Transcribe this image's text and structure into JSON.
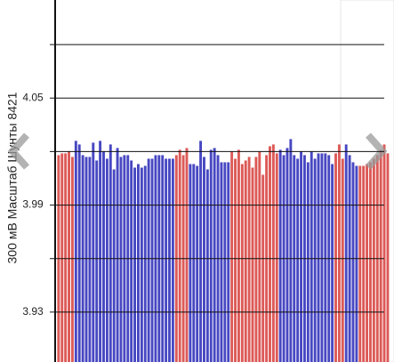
{
  "chart_data": {
    "type": "bar",
    "y_label": "300 мВ Масштаб  Шунты 8421",
    "values": [
      4.018,
      4.019,
      4.019,
      4.02,
      4.017,
      4.026,
      4.024,
      4.018,
      4.017,
      4.017,
      4.025,
      4.015,
      4.026,
      4.02,
      4.016,
      4.024,
      4.01,
      4.022,
      4.017,
      4.018,
      4.018,
      4.015,
      4.011,
      4.013,
      4.011,
      4.012,
      4.016,
      4.016,
      4.018,
      4.018,
      4.018,
      4.016,
      4.016,
      4.016,
      4.018,
      4.021,
      4.018,
      4.022,
      4.013,
      4.013,
      4.012,
      4.026,
      4.017,
      4.01,
      4.021,
      4.022,
      4.018,
      4.014,
      4.014,
      4.014,
      4.02,
      4.016,
      4.021,
      4.013,
      4.015,
      4.017,
      4.011,
      4.017,
      4.02,
      4.007,
      4.018,
      4.023,
      4.024,
      4.019,
      4.021,
      4.018,
      4.022,
      4.027,
      4.018,
      4.016,
      4.02,
      4.018,
      4.014,
      4.02,
      4.016,
      4.019,
      4.019,
      4.019,
      4.018,
      4.013,
      4.019,
      4.024,
      4.016,
      4.024,
      4.018,
      4.014,
      4.012,
      4.012,
      4.012,
      4.013,
      4.014,
      4.016,
      4.018,
      4.021,
      4.024,
      4.019
    ],
    "colors": [
      "#dc5a57",
      "#dc5a57",
      "#dc5a57",
      "#dc5a57",
      "#dc5a57",
      "#4747c2",
      "#4747c2",
      "#4747c2",
      "#4747c2",
      "#4747c2",
      "#4747c2",
      "#4747c2",
      "#4747c2",
      "#4747c2",
      "#4747c2",
      "#4747c2",
      "#4747c2",
      "#4747c2",
      "#4747c2",
      "#4747c2",
      "#4747c2",
      "#4747c2",
      "#4747c2",
      "#4747c2",
      "#4747c2",
      "#4747c2",
      "#4747c2",
      "#4747c2",
      "#4747c2",
      "#4747c2",
      "#4747c2",
      "#4747c2",
      "#4747c2",
      "#4747c2",
      "#dc5a57",
      "#dc5a57",
      "#dc5a57",
      "#dc5a57",
      "#4747c2",
      "#4747c2",
      "#4747c2",
      "#4747c2",
      "#4747c2",
      "#4747c2",
      "#4747c2",
      "#4747c2",
      "#4747c2",
      "#4747c2",
      "#4747c2",
      "#4747c2",
      "#dc5a57",
      "#dc5a57",
      "#dc5a57",
      "#dc5a57",
      "#dc5a57",
      "#dc5a57",
      "#dc5a57",
      "#dc5a57",
      "#dc5a57",
      "#dc5a57",
      "#dc5a57",
      "#dc5a57",
      "#dc5a57",
      "#dc5a57",
      "#4747c2",
      "#4747c2",
      "#4747c2",
      "#4747c2",
      "#4747c2",
      "#4747c2",
      "#4747c2",
      "#4747c2",
      "#4747c2",
      "#4747c2",
      "#4747c2",
      "#4747c2",
      "#4747c2",
      "#4747c2",
      "#4747c2",
      "#4747c2",
      "#dc5a57",
      "#dc5a57",
      "#dc5a57",
      "#4747c2",
      "#4747c2",
      "#4747c2",
      "#4747c2",
      "#dc5a57",
      "#dc5a57",
      "#dc5a57",
      "#dc5a57",
      "#dc5a57",
      "#dc5a57",
      "#dc5a57",
      "#dc5a57",
      "#dc5a57"
    ],
    "ylim": [
      3.902,
      4.105
    ],
    "yticks": [
      4.05,
      3.99,
      3.93
    ],
    "minor_gridlines": [
      4.08,
      4.02,
      3.96
    ],
    "grid": true
  }
}
